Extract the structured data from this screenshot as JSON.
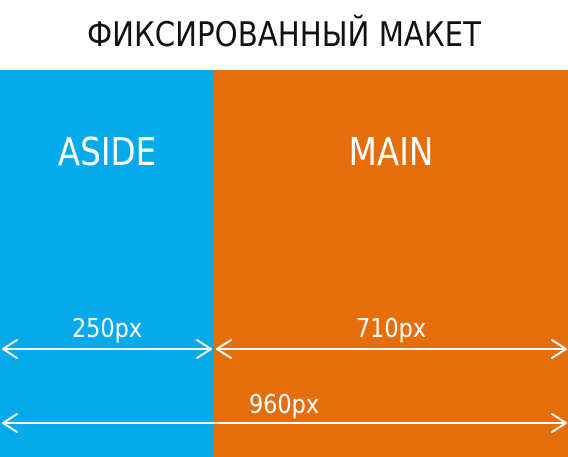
{
  "title": "ФИКСИРОВАННЫЙ МАКЕТ",
  "blocks": {
    "aside": {
      "label": "ASIDE",
      "width_label": "250px"
    },
    "main": {
      "label": "MAIN",
      "width_label": "710px"
    }
  },
  "total_width_label": "960px",
  "colors": {
    "aside": "#04aaea",
    "main": "#e36e0b",
    "text": "#ffffff",
    "title": "#111111"
  }
}
